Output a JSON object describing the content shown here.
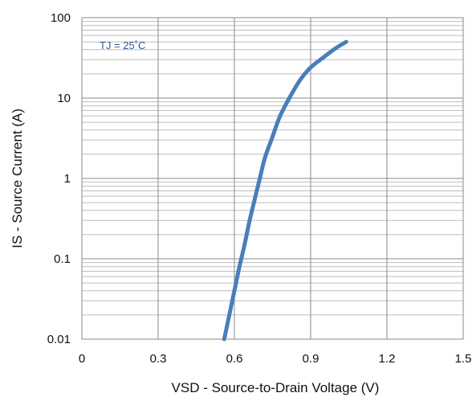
{
  "chart_data": {
    "type": "line",
    "title": "",
    "xlabel": "VSD - Source-to-Drain Voltage (V)",
    "ylabel": "IS - Source Current (A)",
    "xlim": [
      0,
      1.5
    ],
    "ylim": [
      0.01,
      100
    ],
    "yscale": "log",
    "grid": true,
    "x_ticks": [
      0,
      0.3,
      0.6,
      0.9,
      1.2,
      1.5
    ],
    "x_tick_labels": [
      "0",
      "0.3",
      "0.6",
      "0.9",
      "1.2",
      "1.5"
    ],
    "y_ticks": [
      0.01,
      0.1,
      1,
      10,
      100
    ],
    "y_tick_labels": [
      "0.01",
      "0.1",
      "1",
      "10",
      "100"
    ],
    "annotation": "TJ = 25˚C",
    "series": [
      {
        "color": "#4a7ebb",
        "x": [
          0.56,
          0.58,
          0.6,
          0.62,
          0.64,
          0.66,
          0.68,
          0.7,
          0.72,
          0.75,
          0.78,
          0.82,
          0.86,
          0.9,
          0.95,
          1.0,
          1.04
        ],
        "y": [
          0.01,
          0.02,
          0.04,
          0.08,
          0.15,
          0.3,
          0.55,
          1.0,
          1.8,
          3.3,
          6.0,
          10.5,
          17.0,
          24.0,
          32.0,
          42.0,
          50.0
        ]
      }
    ]
  }
}
